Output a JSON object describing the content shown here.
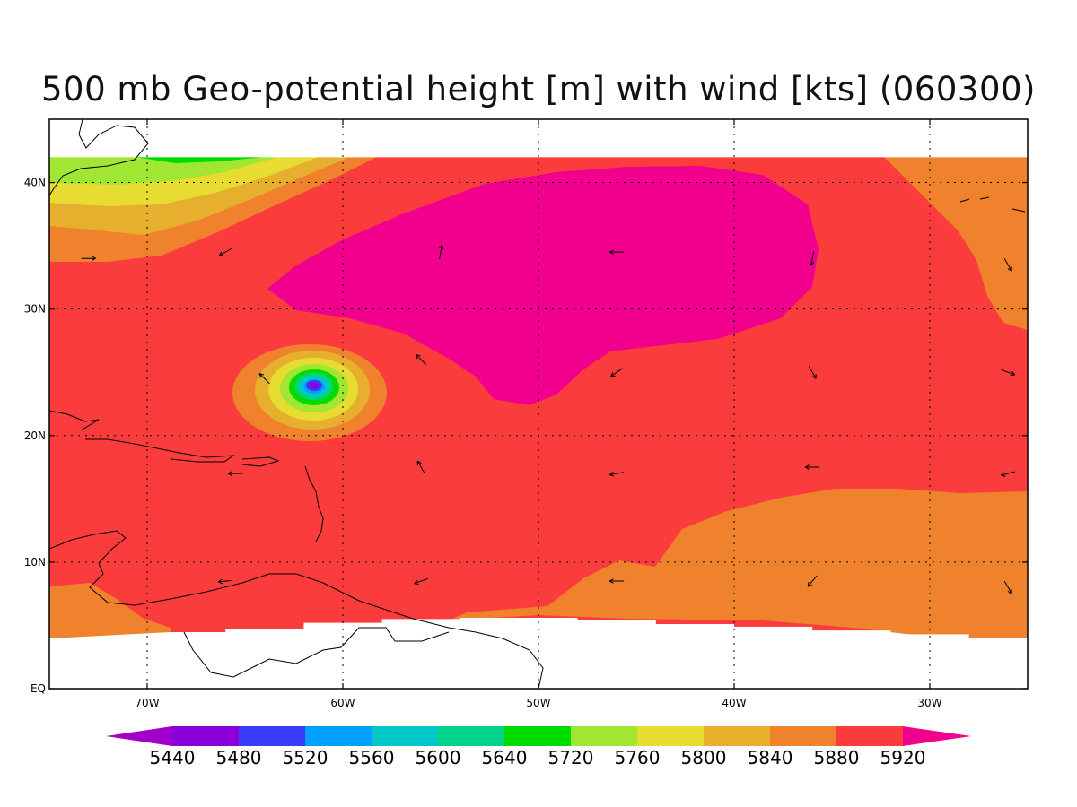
{
  "title": "500 mb Geo-potential height [m] with wind [kts] (060300)",
  "map": {
    "lon_range": [
      -75,
      -25
    ],
    "lat_range": [
      0,
      45
    ],
    "x_ticks": [
      {
        "lon": -70,
        "label": "70W"
      },
      {
        "lon": -60,
        "label": "60W"
      },
      {
        "lon": -50,
        "label": "50W"
      },
      {
        "lon": -40,
        "label": "40W"
      },
      {
        "lon": -30,
        "label": "30W"
      }
    ],
    "y_ticks": [
      {
        "lat": 0,
        "label": "EQ"
      },
      {
        "lat": 10,
        "label": "10N"
      },
      {
        "lat": 20,
        "label": "20N"
      },
      {
        "lat": 30,
        "label": "30N"
      },
      {
        "lat": 40,
        "label": "40N"
      }
    ],
    "grid": true,
    "data_top_lat": 42
  },
  "fields": {
    "hurricane_center": {
      "lon": -61.6,
      "lat": 23.9
    },
    "high_center": {
      "lon": -46,
      "lat": 33
    }
  },
  "colorbar": {
    "colors": [
      "#8a00d8",
      "#3a3aff",
      "#00a0ff",
      "#00c8c8",
      "#00d28a",
      "#00dc00",
      "#a0e632",
      "#e6dc32",
      "#e6af2d",
      "#f0822d",
      "#fa3c3c"
    ],
    "end_low": "#a000c8",
    "end_high": "#f0008c",
    "labels": [
      "5440",
      "5480",
      "5520",
      "5560",
      "5600",
      "5640",
      "5720",
      "5760",
      "5800",
      "5840",
      "5880",
      "5920"
    ]
  },
  "palette": {
    "h5880": "#fa3c3c",
    "h5840": "#f0822d",
    "h5800": "#e6af2d",
    "h5760": "#e6dc32",
    "h5720": "#a0e632",
    "h5640": "#00dc00",
    "h5600": "#00d28a",
    "h5560": "#00c8c8",
    "h5520": "#00a0ff",
    "h5480": "#3a3aff",
    "h5440": "#8a00d8",
    "h5920": "#f0008c"
  },
  "wind_arrows": [
    {
      "lon": -73,
      "lat": 34,
      "deg": 0
    },
    {
      "lon": -66,
      "lat": 34.5,
      "deg": 210
    },
    {
      "lon": -64,
      "lat": 24.5,
      "deg": 135
    },
    {
      "lon": -55,
      "lat": 34.5,
      "deg": 80
    },
    {
      "lon": -46,
      "lat": 34.5,
      "deg": 180
    },
    {
      "lon": -36,
      "lat": 34,
      "deg": 260
    },
    {
      "lon": -26,
      "lat": 33.5,
      "deg": 300
    },
    {
      "lon": -56,
      "lat": 26,
      "deg": 135
    },
    {
      "lon": -46,
      "lat": 25,
      "deg": 215
    },
    {
      "lon": -36,
      "lat": 25,
      "deg": 300
    },
    {
      "lon": -26,
      "lat": 25,
      "deg": 340
    },
    {
      "lon": -56,
      "lat": 17.5,
      "deg": 120
    },
    {
      "lon": -46,
      "lat": 17,
      "deg": 190
    },
    {
      "lon": -36,
      "lat": 17.5,
      "deg": 180
    },
    {
      "lon": -26,
      "lat": 17,
      "deg": 195
    },
    {
      "lon": -65.5,
      "lat": 17,
      "deg": 180
    },
    {
      "lon": -66,
      "lat": 8.5,
      "deg": 185
    },
    {
      "lon": -56,
      "lat": 8.5,
      "deg": 200
    },
    {
      "lon": -46,
      "lat": 8.5,
      "deg": 180
    },
    {
      "lon": -36,
      "lat": 8.5,
      "deg": 230
    },
    {
      "lon": -26,
      "lat": 8,
      "deg": 300
    }
  ]
}
